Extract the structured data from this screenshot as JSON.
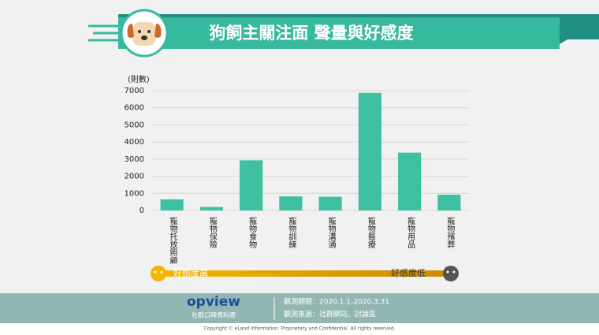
{
  "chart_data": {
    "type": "bar",
    "title": "狗飼主關注面  聲量與好感度",
    "y_unit_label": "(則數)",
    "categories": [
      "寵物托放照顧",
      "寵物保險",
      "寵物食物",
      "寵物訓練",
      "寵物溝通",
      "寵物醫療",
      "寵物用品",
      "寵物殯葬"
    ],
    "values": [
      650,
      200,
      2930,
      820,
      800,
      6870,
      3380,
      920
    ],
    "color": "#3ec0a2",
    "ylim": [
      0,
      7000
    ],
    "yticks": [
      0,
      1000,
      2000,
      3000,
      4000,
      5000,
      6000,
      7000
    ],
    "grid": true,
    "sentiment_high": "好感度高",
    "sentiment_low": "好感度低"
  },
  "footer": {
    "brand": "opview",
    "brand_subtitle": "社群口碑資料庫",
    "period": "觀測期間：2020.1.1-2020.3.31",
    "source": "觀測來源：社群網站、討論區",
    "copyright": "Copyright © eLand Information. Proprietary and Confidential. All rights reserved."
  }
}
